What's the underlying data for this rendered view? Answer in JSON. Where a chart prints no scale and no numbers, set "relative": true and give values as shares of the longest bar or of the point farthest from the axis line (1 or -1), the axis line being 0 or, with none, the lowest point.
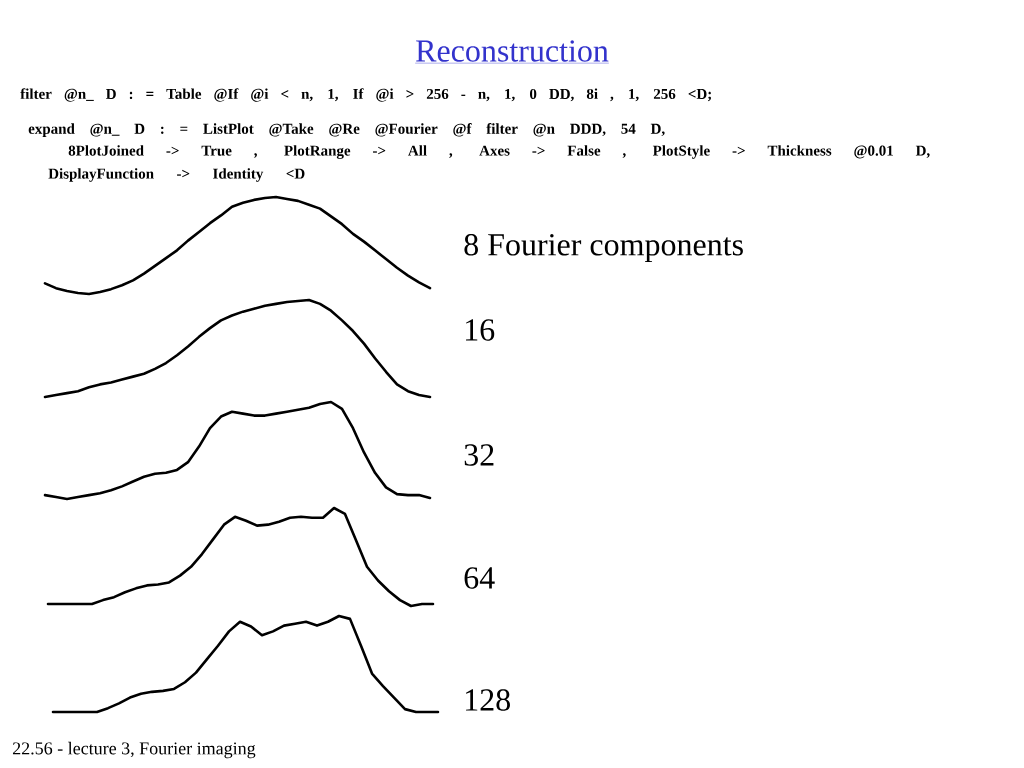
{
  "chart_data": [
    {
      "type": "line",
      "relative": true,
      "title": "Reconstruction",
      "annotations": [
        "filter @n_ D : = Table @If @i < n, 1, If @i > 256 - n, 1, 0 DD, 8i , 1, 256 <D;",
        "expand @n_ D : = ListPlot @Take @Re @Fourier @f filter @n DDD, 54 D,",
        "8PlotJoined -> True , PlotRange -> All , Axes -> False , PlotStyle -> Thickness @0.01 D,",
        "DisplayFunction -> Identity <D"
      ],
      "categories": [
        null,
        null,
        null,
        null,
        null,
        null,
        null,
        null,
        null,
        null,
        null,
        null,
        null,
        null,
        null,
        null,
        null,
        null,
        null,
        null,
        null,
        null,
        null,
        null,
        null,
        null,
        null,
        null,
        null,
        null,
        null,
        null,
        null,
        null,
        null,
        null
      ],
      "series": [
        {
          "name": "8 Fourier components",
          "color": "#000000",
          "values": [
            0.11,
            0.06,
            0.03,
            0.01,
            0,
            0.02,
            0.05,
            0.09,
            0.14,
            0.21,
            0.29,
            0.37,
            0.45,
            0.55,
            0.64,
            0.73,
            0.81,
            0.9,
            0.94,
            0.97,
            0.99,
            1,
            0.98,
            0.96,
            0.92,
            0.88,
            0.8,
            0.72,
            0.62,
            0.54,
            0.45,
            0.36,
            0.27,
            0.19,
            0.12,
            0.06
          ]
        }
      ]
    },
    {
      "type": "line",
      "relative": true,
      "categories": [
        null,
        null,
        null,
        null,
        null,
        null,
        null,
        null,
        null,
        null,
        null,
        null,
        null,
        null,
        null,
        null,
        null,
        null,
        null,
        null,
        null,
        null,
        null,
        null,
        null,
        null,
        null,
        null,
        null,
        null,
        null,
        null,
        null,
        null,
        null,
        null
      ],
      "series": [
        {
          "name": "16",
          "color": "#000000",
          "values": [
            0,
            0.02,
            0.04,
            0.06,
            0.1,
            0.13,
            0.15,
            0.18,
            0.21,
            0.24,
            0.29,
            0.35,
            0.43,
            0.52,
            0.62,
            0.71,
            0.79,
            0.84,
            0.88,
            0.91,
            0.94,
            0.96,
            0.98,
            0.99,
            1,
            0.96,
            0.89,
            0.79,
            0.68,
            0.55,
            0.4,
            0.26,
            0.13,
            0.06,
            0.02,
            0
          ]
        }
      ]
    },
    {
      "type": "line",
      "relative": true,
      "categories": [
        null,
        null,
        null,
        null,
        null,
        null,
        null,
        null,
        null,
        null,
        null,
        null,
        null,
        null,
        null,
        null,
        null,
        null,
        null,
        null,
        null,
        null,
        null,
        null,
        null,
        null,
        null,
        null,
        null,
        null,
        null,
        null,
        null,
        null,
        null,
        null
      ],
      "series": [
        {
          "name": "32",
          "color": "#000000",
          "values": [
            0.04,
            0.02,
            0,
            0.02,
            0.04,
            0.06,
            0.09,
            0.13,
            0.18,
            0.23,
            0.26,
            0.27,
            0.3,
            0.38,
            0.54,
            0.73,
            0.85,
            0.9,
            0.88,
            0.86,
            0.86,
            0.88,
            0.9,
            0.92,
            0.94,
            0.98,
            1,
            0.93,
            0.73,
            0.48,
            0.27,
            0.12,
            0.05,
            0.04,
            0.04,
            0.01
          ]
        }
      ]
    },
    {
      "type": "line",
      "relative": true,
      "categories": [
        null,
        null,
        null,
        null,
        null,
        null,
        null,
        null,
        null,
        null,
        null,
        null,
        null,
        null,
        null,
        null,
        null,
        null,
        null,
        null,
        null,
        null,
        null,
        null,
        null,
        null,
        null,
        null,
        null,
        null,
        null,
        null,
        null,
        null,
        null,
        null
      ],
      "series": [
        {
          "name": "64",
          "color": "#000000",
          "values": [
            0.02,
            0.02,
            0.02,
            0.02,
            0.02,
            0.06,
            0.09,
            0.14,
            0.18,
            0.21,
            0.22,
            0.24,
            0.31,
            0.4,
            0.53,
            0.68,
            0.83,
            0.91,
            0.87,
            0.82,
            0.83,
            0.86,
            0.9,
            0.91,
            0.9,
            0.9,
            1,
            0.94,
            0.67,
            0.4,
            0.26,
            0.15,
            0.06,
            0,
            0.02,
            0.02
          ]
        }
      ]
    },
    {
      "type": "line",
      "relative": true,
      "annotations": [
        "22.56 - lecture 3, Fourier imaging"
      ],
      "categories": [
        null,
        null,
        null,
        null,
        null,
        null,
        null,
        null,
        null,
        null,
        null,
        null,
        null,
        null,
        null,
        null,
        null,
        null,
        null,
        null,
        null,
        null,
        null,
        null,
        null,
        null,
        null,
        null,
        null,
        null,
        null,
        null,
        null,
        null,
        null,
        null
      ],
      "series": [
        {
          "name": "128",
          "color": "#000000",
          "values": [
            0,
            0,
            0,
            0,
            0,
            0.04,
            0.09,
            0.15,
            0.19,
            0.21,
            0.22,
            0.24,
            0.31,
            0.41,
            0.55,
            0.69,
            0.84,
            0.94,
            0.89,
            0.8,
            0.84,
            0.9,
            0.92,
            0.94,
            0.9,
            0.94,
            1,
            0.97,
            0.69,
            0.4,
            0.27,
            0.15,
            0.03,
            0,
            0,
            0
          ]
        }
      ]
    }
  ]
}
